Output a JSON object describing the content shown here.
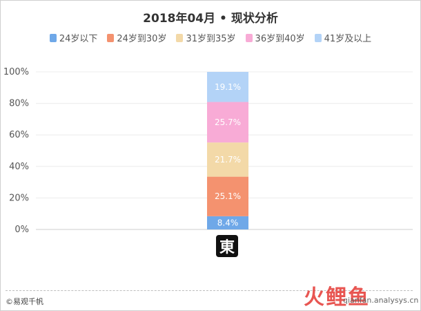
{
  "chart_data": {
    "type": "bar",
    "stacked": true,
    "title": "2018年04月 • 现状分析",
    "categories": [
      "東"
    ],
    "series": [
      {
        "name": "24岁以下",
        "values": [
          8.4
        ],
        "label": "8.4%",
        "color": "#6fa8e8"
      },
      {
        "name": "24岁到30岁",
        "values": [
          25.1
        ],
        "label": "25.1%",
        "color": "#f4926f"
      },
      {
        "name": "31岁到35岁",
        "values": [
          21.7
        ],
        "label": "21.7%",
        "color": "#f3d9a8"
      },
      {
        "name": "36岁到40岁",
        "values": [
          25.7
        ],
        "label": "25.7%",
        "color": "#f8abd6"
      },
      {
        "name": "41岁及以上",
        "values": [
          19.1
        ],
        "label": "19.1%",
        "color": "#b3d3f7"
      }
    ],
    "y_ticks": [
      "0%",
      "20%",
      "40%",
      "60%",
      "80%",
      "100%"
    ],
    "ylim": [
      0,
      100
    ],
    "legend_position": "top",
    "grid": true
  },
  "footer": {
    "copyright": "©易观千帆",
    "watermark": "火鲤鱼",
    "watermark_url": "qianfan.analysys.cn"
  }
}
